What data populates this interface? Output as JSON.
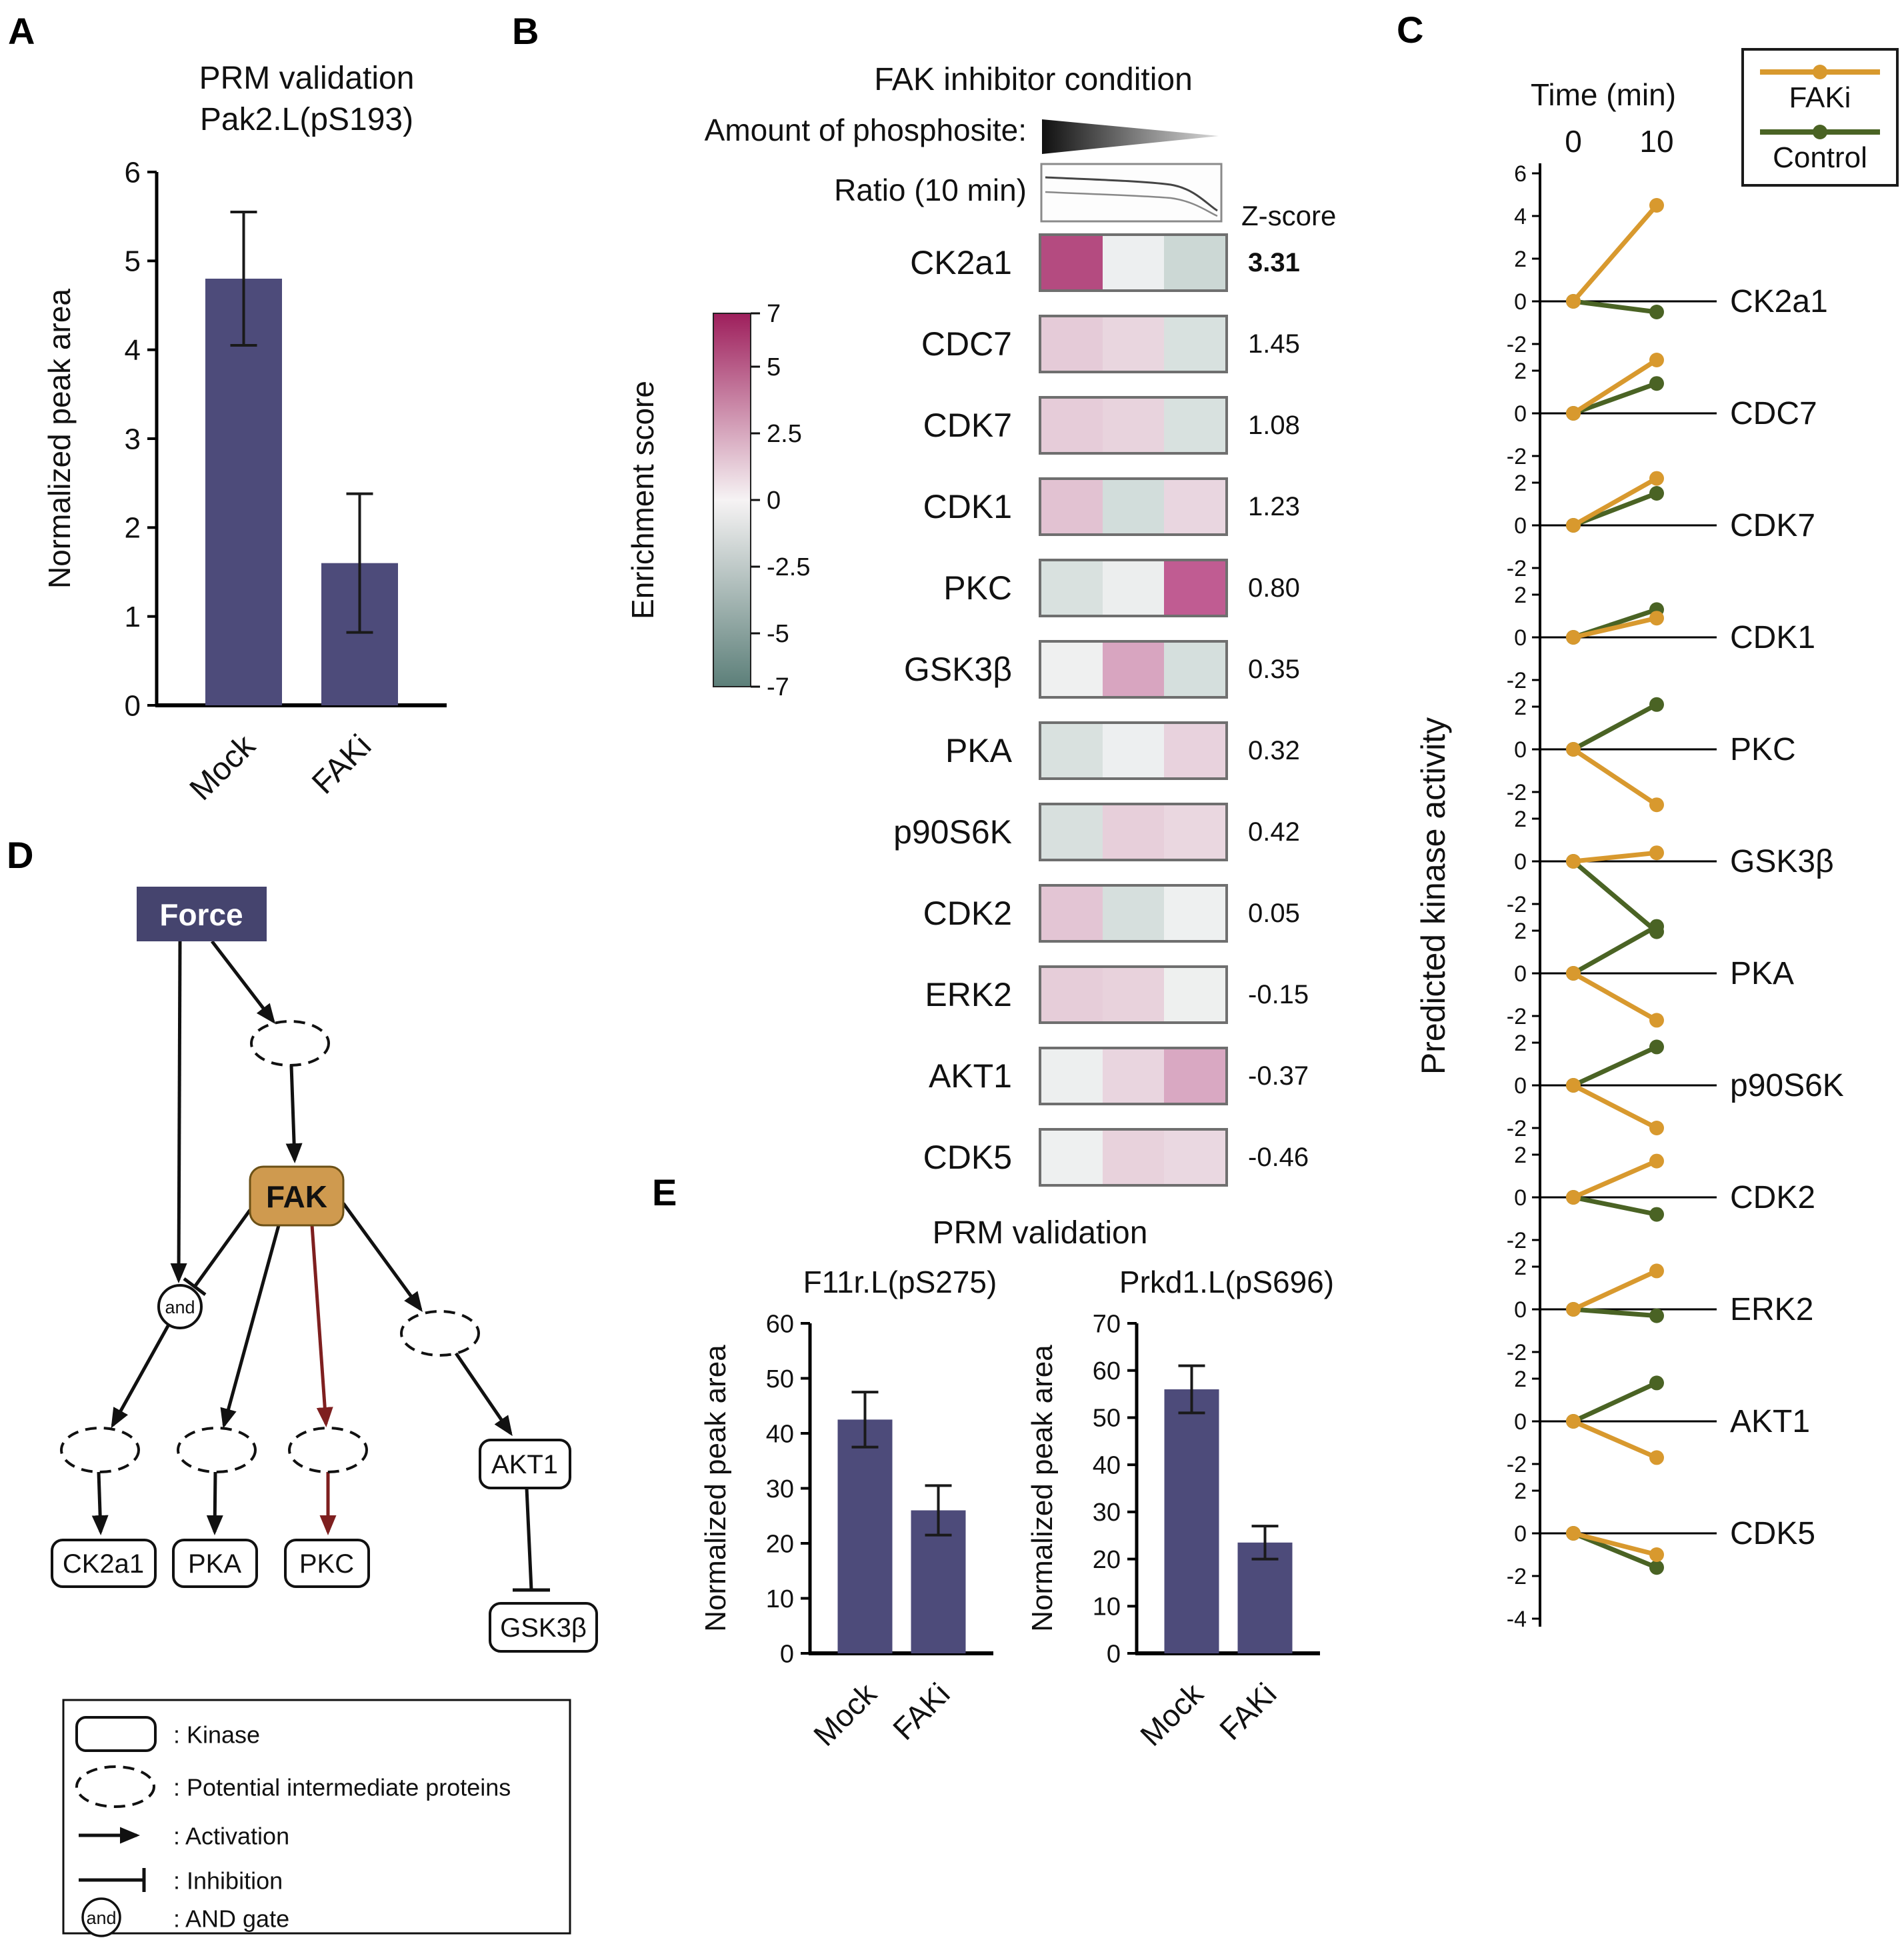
{
  "colors": {
    "bar_fill": "#4d4b7a",
    "faki": "#d8992e",
    "control": "#4a6324",
    "force_fill": "#45446e",
    "fak_fill": "#cf9a4f",
    "inhibit_red": "#7e1f1f"
  },
  "panelA": {
    "label": "A",
    "title1": "PRM validation",
    "title2": "Pak2.L(pS193)",
    "chart_data": {
      "type": "bar",
      "title": "PRM validation Pak2.L(pS193)",
      "ylabel": "Normalized peak area",
      "categories": [
        "Mock",
        "FAKi"
      ],
      "values": [
        4.8,
        1.6
      ],
      "errors": [
        0.75,
        0.78
      ],
      "ylim": [
        0,
        6
      ],
      "yticks": [
        0,
        1,
        2,
        3,
        4,
        5,
        6
      ]
    }
  },
  "panelB": {
    "label": "B",
    "title": "FAK inhibitor condition",
    "amount_label": "Amount of phosphosite:",
    "ratio_label": "Ratio (10 min)",
    "zscore_header": "Z-score",
    "colorbar_label": "Enrichment score",
    "colorbar_ticks": [
      "7",
      "5",
      "2.5",
      "0",
      "-2.5",
      "-5",
      "-7"
    ],
    "colorbar_colors": [
      "#9e1f5c",
      "#f6f3f4",
      "#5c7f79"
    ],
    "chart_data": {
      "type": "heatmap",
      "columns": 3,
      "rows": [
        {
          "kinase": "CK2a1",
          "zscore": "3.31",
          "bold": true,
          "cells": [
            "#b44b80",
            "#edeff0",
            "#ccd8d5"
          ]
        },
        {
          "kinase": "CDC7",
          "zscore": "1.45",
          "bold": false,
          "cells": [
            "#e5cbd8",
            "#e9d6df",
            "#d8e1df"
          ]
        },
        {
          "kinase": "CDK7",
          "zscore": "1.08",
          "bold": false,
          "cells": [
            "#e6ccd9",
            "#e8d3dd",
            "#d8e1df"
          ]
        },
        {
          "kinase": "CDK1",
          "zscore": "1.23",
          "bold": false,
          "cells": [
            "#e2c2d2",
            "#d2dddb",
            "#e9d6e0"
          ]
        },
        {
          "kinase": "PKC",
          "zscore": "0.80",
          "bold": false,
          "cells": [
            "#d9e1df",
            "#eceeee",
            "#c05c92"
          ]
        },
        {
          "kinase": "GSK3β",
          "zscore": "0.35",
          "bold": false,
          "cells": [
            "#eff0f0",
            "#d8a5c0",
            "#d5dfdd"
          ]
        },
        {
          "kinase": "PKA",
          "zscore": "0.32",
          "bold": false,
          "cells": [
            "#d9e1df",
            "#edeff0",
            "#e8d2dd"
          ]
        },
        {
          "kinase": "p90S6K",
          "zscore": "0.42",
          "bold": false,
          "cells": [
            "#d8e0de",
            "#e7cfda",
            "#ead7e0"
          ]
        },
        {
          "kinase": "CDK2",
          "zscore": "0.05",
          "bold": false,
          "cells": [
            "#e3c5d4",
            "#d6dfdd",
            "#eef0f0"
          ]
        },
        {
          "kinase": "ERK2",
          "zscore": "-0.15",
          "bold": false,
          "cells": [
            "#e6cdd9",
            "#e8d2dc",
            "#eef0ef"
          ]
        },
        {
          "kinase": "AKT1",
          "zscore": "-0.37",
          "bold": false,
          "cells": [
            "#edefef",
            "#e9d5df",
            "#d9a8c2"
          ]
        },
        {
          "kinase": "CDK5",
          "zscore": "-0.46",
          "bold": false,
          "cells": [
            "#eef0f0",
            "#e8d2dc",
            "#ead8e1"
          ]
        }
      ]
    }
  },
  "panelC": {
    "label": "C",
    "time_label": "Time (min)",
    "time_ticks": [
      "0",
      "10"
    ],
    "ylabel": "Predicted kinase activity",
    "legend": {
      "faki": "FAKi",
      "control": "Control"
    },
    "chart_data": {
      "type": "line",
      "x": [
        0,
        10
      ],
      "series_colors": {
        "FAKi": "#d8992e",
        "Control": "#4a6324"
      },
      "kinases": [
        {
          "name": "CK2a1",
          "yticks": [
            6,
            4,
            2,
            0,
            -2
          ],
          "faki": [
            0,
            4.5
          ],
          "control": [
            0,
            -0.5
          ]
        },
        {
          "name": "CDC7",
          "yticks": [
            2,
            0,
            -2
          ],
          "faki": [
            0,
            2.5
          ],
          "control": [
            0,
            1.4
          ]
        },
        {
          "name": "CDK7",
          "yticks": [
            2,
            0,
            -2
          ],
          "faki": [
            0,
            2.2
          ],
          "control": [
            0,
            1.5
          ]
        },
        {
          "name": "CDK1",
          "yticks": [
            2,
            0,
            -2
          ],
          "faki": [
            0,
            0.9
          ],
          "control": [
            0,
            1.3
          ]
        },
        {
          "name": "PKC",
          "yticks": [
            2,
            0,
            -2
          ],
          "faki": [
            0,
            -2.6
          ],
          "control": [
            0,
            2.1
          ]
        },
        {
          "name": "GSK3β",
          "yticks": [
            2,
            0,
            -2
          ],
          "faki": [
            0,
            0.4
          ],
          "control": [
            0,
            -3.3
          ]
        },
        {
          "name": "PKA",
          "yticks": [
            2,
            0,
            -2
          ],
          "faki": [
            0,
            -2.2
          ],
          "control": [
            0,
            2.2
          ]
        },
        {
          "name": "p90S6K",
          "yticks": [
            2,
            0,
            -2
          ],
          "faki": [
            0,
            -2.0
          ],
          "control": [
            0,
            1.8
          ]
        },
        {
          "name": "CDK2",
          "yticks": [
            2,
            0,
            -2
          ],
          "faki": [
            0,
            1.7
          ],
          "control": [
            0,
            -0.8
          ]
        },
        {
          "name": "ERK2",
          "yticks": [
            2,
            0,
            -2
          ],
          "faki": [
            0,
            1.8
          ],
          "control": [
            0,
            -0.3
          ]
        },
        {
          "name": "AKT1",
          "yticks": [
            2,
            0,
            -2
          ],
          "faki": [
            0,
            -1.7
          ],
          "control": [
            0,
            1.8
          ]
        },
        {
          "name": "CDK5",
          "yticks": [
            2,
            0,
            -2,
            -4
          ],
          "faki": [
            0,
            -1.0
          ],
          "control": [
            0,
            -1.6
          ]
        }
      ]
    }
  },
  "panelD": {
    "label": "D",
    "nodes": {
      "force": "Force",
      "fak": "FAK",
      "and": "and",
      "ck2a1": "CK2a1",
      "pka": "PKA",
      "pkc": "PKC",
      "akt1": "AKT1",
      "gsk3b": "GSK3β"
    },
    "and_gate_label": "and",
    "legend": [
      {
        "symbol": "kinase-box",
        "text": ": Kinase"
      },
      {
        "symbol": "dashed-ellipse",
        "text": ": Potential intermediate proteins"
      },
      {
        "symbol": "arrow",
        "text": ": Activation"
      },
      {
        "symbol": "tbar",
        "text": ": Inhibition"
      },
      {
        "symbol": "and-gate",
        "text": ": AND gate"
      }
    ]
  },
  "panelE": {
    "label": "E",
    "title": "PRM validation",
    "charts": [
      {
        "chart_data": {
          "type": "bar",
          "title": "F11r.L(pS275)",
          "ylabel": "Normalized peak area",
          "categories": [
            "Mock",
            "FAKi"
          ],
          "values": [
            42.5,
            26
          ],
          "errors": [
            5,
            4.5
          ],
          "ylim": [
            0,
            60
          ],
          "yticks": [
            0,
            10,
            20,
            30,
            40,
            50,
            60
          ]
        }
      },
      {
        "chart_data": {
          "type": "bar",
          "title": "Prkd1.L(pS696)",
          "ylabel": "Normalized peak area",
          "categories": [
            "Mock",
            "FAKi"
          ],
          "values": [
            56,
            23.5
          ],
          "errors": [
            5,
            3.5
          ],
          "ylim": [
            0,
            70
          ],
          "yticks": [
            0,
            10,
            20,
            30,
            40,
            50,
            60,
            70
          ]
        }
      }
    ]
  }
}
